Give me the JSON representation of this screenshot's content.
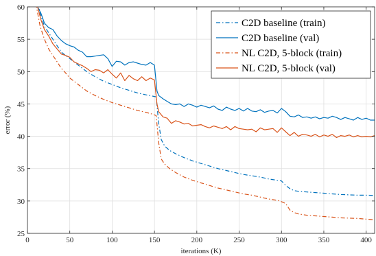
{
  "chart_data": {
    "type": "line",
    "title": "",
    "xlabel": "iterations (K)",
    "ylabel": "error (%)",
    "xlim": [
      0,
      410
    ],
    "ylim": [
      25,
      60
    ],
    "xticks": [
      0,
      50,
      100,
      150,
      200,
      250,
      300,
      350,
      400
    ],
    "yticks": [
      25,
      30,
      35,
      40,
      45,
      50,
      55,
      60
    ],
    "grid": true,
    "legend_position": "top-right",
    "series": [
      {
        "name": "C2D baseline (train)",
        "color": "#0072BD",
        "style": "dashdot",
        "x": [
          10,
          15,
          20,
          25,
          30,
          35,
          40,
          45,
          50,
          60,
          70,
          80,
          90,
          100,
          110,
          120,
          130,
          140,
          148,
          152,
          155,
          158,
          162,
          168,
          175,
          185,
          195,
          205,
          215,
          225,
          235,
          245,
          255,
          265,
          275,
          285,
          295,
          300,
          305,
          310,
          315,
          320,
          330,
          340,
          350,
          360,
          370,
          380,
          390,
          400,
          410
        ],
        "y": [
          62,
          59,
          57,
          56,
          55,
          54,
          53,
          52.5,
          52,
          51,
          50,
          49.2,
          48.5,
          48,
          47.5,
          47.1,
          46.7,
          46.4,
          46.2,
          46.1,
          42,
          39.5,
          38.5,
          37.8,
          37.3,
          36.7,
          36.2,
          35.8,
          35.4,
          35.0,
          34.7,
          34.4,
          34.1,
          33.9,
          33.7,
          33.4,
          33.2,
          33.1,
          32.4,
          31.9,
          31.6,
          31.5,
          31.4,
          31.3,
          31.2,
          31.1,
          31.0,
          30.95,
          30.9,
          30.9,
          30.85
        ]
      },
      {
        "name": "C2D baseline (val)",
        "color": "#0072BD",
        "style": "solid",
        "x": [
          12,
          16,
          20,
          25,
          30,
          35,
          40,
          45,
          50,
          55,
          60,
          65,
          70,
          75,
          80,
          85,
          90,
          95,
          100,
          105,
          110,
          115,
          120,
          125,
          130,
          135,
          140,
          145,
          150,
          153,
          155,
          160,
          165,
          170,
          175,
          180,
          185,
          190,
          195,
          200,
          205,
          210,
          215,
          220,
          225,
          230,
          235,
          240,
          245,
          250,
          255,
          260,
          265,
          270,
          275,
          280,
          285,
          290,
          295,
          300,
          305,
          310,
          315,
          320,
          325,
          330,
          335,
          340,
          345,
          350,
          355,
          360,
          365,
          370,
          375,
          380,
          385,
          390,
          395,
          400,
          405,
          410
        ],
        "y": [
          60,
          59,
          57.5,
          56.8,
          56.5,
          55.5,
          54.8,
          54.3,
          54,
          53.8,
          53.3,
          53,
          52.3,
          52.3,
          52.4,
          52.5,
          52.6,
          52.0,
          50.8,
          51.6,
          51.5,
          51.0,
          51.4,
          51.5,
          51.3,
          51.1,
          51.0,
          51.4,
          51.0,
          47,
          46.3,
          45.8,
          45.4,
          45.0,
          44.9,
          45.0,
          44.6,
          45.0,
          44.8,
          44.5,
          44.8,
          44.6,
          44.4,
          44.7,
          44.2,
          44.0,
          44.5,
          44.2,
          44.0,
          44.3,
          43.9,
          44.3,
          43.9,
          43.8,
          44.1,
          43.7,
          43.9,
          44.0,
          43.6,
          44.3,
          43.8,
          43.1,
          43.0,
          43.3,
          42.9,
          43.0,
          42.8,
          43.0,
          42.7,
          42.9,
          42.8,
          43.1,
          42.9,
          42.6,
          42.9,
          42.7,
          42.5,
          42.9,
          42.6,
          42.8,
          42.5,
          42.5
        ]
      },
      {
        "name": "NL C2D, 5-block (train)",
        "color": "#D95319",
        "style": "dashdot",
        "x": [
          10,
          15,
          20,
          25,
          30,
          35,
          40,
          45,
          50,
          60,
          70,
          80,
          90,
          100,
          110,
          120,
          130,
          140,
          148,
          152,
          155,
          158,
          162,
          168,
          175,
          185,
          195,
          205,
          215,
          225,
          235,
          245,
          255,
          265,
          275,
          285,
          295,
          300,
          305,
          310,
          315,
          320,
          330,
          340,
          350,
          360,
          370,
          380,
          390,
          400,
          410
        ],
        "y": [
          60.5,
          57,
          55,
          53.5,
          52.5,
          51.5,
          50.5,
          49.8,
          49,
          48,
          47,
          46.3,
          45.7,
          45.2,
          44.8,
          44.4,
          44,
          43.7,
          43.4,
          43.2,
          39,
          36.5,
          35.7,
          35.0,
          34.4,
          33.7,
          33.2,
          32.8,
          32.4,
          32.0,
          31.7,
          31.4,
          31.1,
          30.9,
          30.6,
          30.3,
          30.1,
          29.9,
          29.6,
          28.6,
          28.2,
          28.0,
          27.8,
          27.7,
          27.6,
          27.5,
          27.4,
          27.35,
          27.3,
          27.2,
          27.1
        ]
      },
      {
        "name": "NL C2D, 5-block (val)",
        "color": "#D95319",
        "style": "solid",
        "x": [
          12,
          16,
          20,
          25,
          30,
          35,
          40,
          45,
          50,
          55,
          60,
          65,
          70,
          75,
          80,
          85,
          90,
          95,
          100,
          105,
          110,
          115,
          120,
          125,
          130,
          135,
          140,
          145,
          150,
          153,
          155,
          160,
          165,
          170,
          175,
          180,
          185,
          190,
          195,
          200,
          205,
          210,
          215,
          220,
          225,
          230,
          235,
          240,
          245,
          250,
          255,
          260,
          265,
          270,
          275,
          280,
          285,
          290,
          295,
          300,
          305,
          310,
          315,
          320,
          325,
          330,
          335,
          340,
          345,
          350,
          355,
          360,
          365,
          370,
          375,
          380,
          385,
          390,
          395,
          400,
          405,
          410
        ],
        "y": [
          60,
          58,
          56.5,
          55.5,
          54.3,
          53.5,
          52.7,
          52.5,
          52.2,
          51.5,
          51.2,
          50.9,
          50.5,
          50.0,
          50.3,
          50.2,
          49.8,
          50.3,
          49.6,
          49.0,
          49.8,
          48.6,
          49.4,
          48.9,
          48.6,
          49.2,
          48.6,
          49.0,
          48.7,
          45,
          43.8,
          43.0,
          42.8,
          42.0,
          42.4,
          42.2,
          41.9,
          42.0,
          41.6,
          41.7,
          41.8,
          41.5,
          41.3,
          41.6,
          41.4,
          41.2,
          41.5,
          41.0,
          41.5,
          41.2,
          41.1,
          41.0,
          41.1,
          40.7,
          41.3,
          41.0,
          41.1,
          41.2,
          40.6,
          41.3,
          40.7,
          40.1,
          40.6,
          40.0,
          40.3,
          40.2,
          40.0,
          40.3,
          39.9,
          40.2,
          40.0,
          40.3,
          39.8,
          40.1,
          40.0,
          40.2,
          39.9,
          40.1,
          39.9,
          40.0,
          39.9,
          40.1
        ]
      }
    ]
  }
}
